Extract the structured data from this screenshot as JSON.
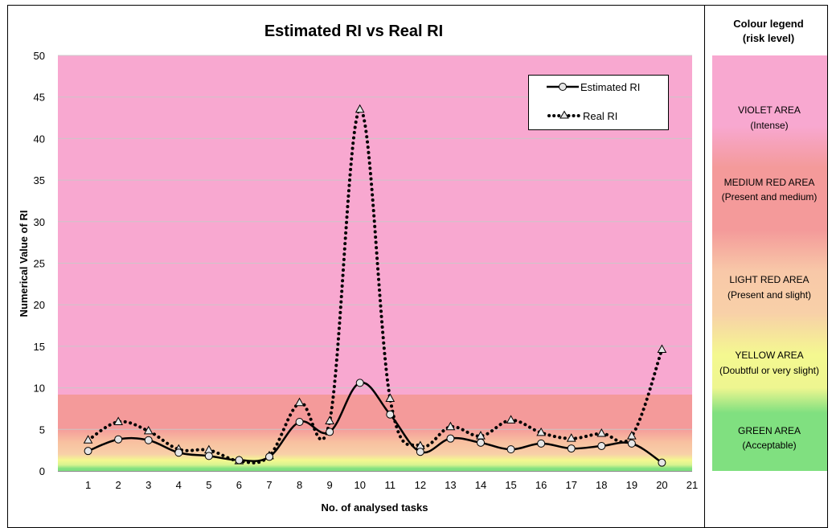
{
  "chart_data": {
    "type": "line",
    "title": "Estimated RI vs Real RI",
    "xlabel": "No. of analysed tasks",
    "ylabel": "Numerical Value of RI",
    "x_ticks": [
      1,
      2,
      3,
      4,
      5,
      6,
      7,
      8,
      9,
      10,
      11,
      12,
      13,
      14,
      15,
      16,
      17,
      18,
      19,
      20,
      21
    ],
    "y_ticks": [
      0,
      5,
      10,
      15,
      20,
      25,
      30,
      35,
      40,
      45,
      50
    ],
    "ylim": [
      0,
      50
    ],
    "xlim": [
      0,
      21
    ],
    "legend_position": "top-right",
    "series": [
      {
        "name": "Estimated RI",
        "style": "solid",
        "marker": "circle",
        "color": "#000000",
        "x": [
          1,
          2,
          3,
          4,
          5,
          6,
          7,
          8,
          9,
          10,
          11,
          12,
          13,
          14,
          15,
          16,
          17,
          18,
          19,
          20
        ],
        "values": [
          2.4,
          3.8,
          3.7,
          2.2,
          1.8,
          1.3,
          1.7,
          5.9,
          4.7,
          10.6,
          6.8,
          2.3,
          3.9,
          3.4,
          2.6,
          3.3,
          2.7,
          3.0,
          3.3,
          1.0
        ]
      },
      {
        "name": "Real RI",
        "style": "dotted",
        "marker": "triangle",
        "color": "#000000",
        "x": [
          1,
          2,
          3,
          4,
          5,
          6,
          7,
          8,
          9,
          10,
          11,
          12,
          13,
          14,
          15,
          16,
          17,
          18,
          19,
          20
        ],
        "values": [
          3.7,
          5.9,
          4.8,
          2.6,
          2.5,
          1.2,
          1.8,
          8.2,
          6.0,
          43.5,
          8.7,
          3.0,
          5.3,
          4.2,
          6.1,
          4.6,
          3.9,
          4.5,
          4.2,
          14.6
        ]
      }
    ],
    "bands": [
      {
        "from": 0,
        "to": 1,
        "color": "#80e080"
      },
      {
        "from": 1,
        "to": 2,
        "color": "#f4f890"
      },
      {
        "from": 2,
        "to": 5,
        "color": "#f8c0a0"
      },
      {
        "from": 5,
        "to": 9,
        "color": "#f49a9a"
      },
      {
        "from": 9,
        "to": 50,
        "color": "#f8a8d0"
      }
    ]
  },
  "colour_legend": {
    "title_line1": "Colour legend",
    "title_line2": "(risk level)",
    "items": [
      {
        "line1": "VIOLET AREA",
        "line2": "(Intense)",
        "color": "#f8a8d0"
      },
      {
        "line1": "MEDIUM RED AREA",
        "line2": "(Present and medium)",
        "color": "#f49a9a"
      },
      {
        "line1": "LIGHT RED AREA",
        "line2": "(Present and slight)",
        "color": "#f8c8a8"
      },
      {
        "line1": "YELLOW AREA",
        "line2": "(Doubtful or very slight)",
        "color": "#f4f890"
      },
      {
        "line1": "GREEN AREA",
        "line2": "(Acceptable)",
        "color": "#80e080"
      }
    ]
  }
}
